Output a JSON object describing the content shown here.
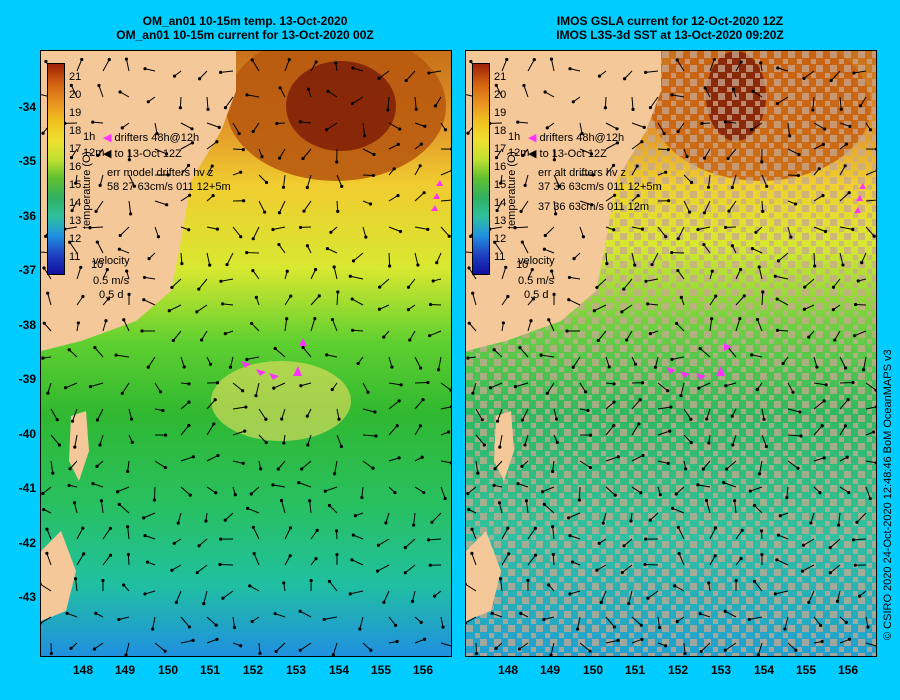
{
  "left_panel": {
    "title_line1": "OM_an01 10-15m temp. 13-Oct-2020",
    "title_line2": "OM_an01 10-15m current for 13-Oct-2020 00Z",
    "legend_line1": "drifters 48h@12h",
    "legend_line2": "to 13-Oct 12Z",
    "err_line1": "err model drifters hv z",
    "err_line2": "58 27 63cm/s 011 12+5m",
    "err_line3": ""
  },
  "right_panel": {
    "title_line1": "IMOS GSLA current for 12-Oct-2020 12Z",
    "title_line2": "IMOS L3S-3d SST at 13-Oct-2020 09:20Z",
    "legend_line1": "drifters 48h@12h",
    "legend_line2": "to 13-Oct 12Z",
    "err_line1": "err alt drifters hv z",
    "err_line2": "37 36 63cm/s 011 12+5m",
    "err_line3": "37 36 63cm/s 011 12m"
  },
  "colorbar": {
    "title": "temperature (C)",
    "labels": [
      "21",
      "20",
      "19",
      "18",
      "17",
      "16",
      "15",
      "14",
      "13",
      "12",
      "11",
      "10"
    ]
  },
  "velocity_key": {
    "title": "velocity",
    "speed": "0.5 m/s",
    "duration": "0.5 d"
  },
  "side_labels": {
    "left_h": "1h",
    "left_12m": "12m"
  },
  "y_ticks": [
    "-34",
    "-35",
    "-36",
    "-37",
    "-38",
    "-39",
    "-40",
    "-41",
    "-42",
    "-43"
  ],
  "x_ticks": [
    "148",
    "149",
    "150",
    "151",
    "152",
    "153",
    "154",
    "155",
    "156"
  ],
  "credit": "© CSIRO 2020   24-Oct-2020 12:48:46 BoM OceanMAPS v3",
  "colors": {
    "background": "#00ccff",
    "land": "#f5c89a",
    "drifter": "#ff33ff",
    "cloud": "#c8a890"
  }
}
